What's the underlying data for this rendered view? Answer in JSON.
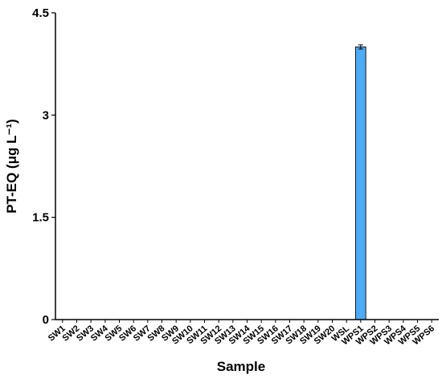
{
  "chart_data": {
    "type": "bar",
    "x_label": "Sample",
    "y_label": "PT-EQ (μg L⁻¹)",
    "categories": [
      "SW1",
      "SW2",
      "SW3",
      "SW4",
      "SW5",
      "SW6",
      "SW7",
      "SW8",
      "SW9",
      "SW10",
      "SW11",
      "SW12",
      "SW13",
      "SW14",
      "SW15",
      "SW16",
      "SW17",
      "SW18",
      "SW19",
      "SW20",
      "WSL",
      "WPS1",
      "WPS2",
      "WPS3",
      "WPS4",
      "WPS5",
      "WPS6"
    ],
    "values": [
      0,
      0,
      0,
      0,
      0,
      0,
      0,
      0,
      0,
      0,
      0,
      0,
      0,
      0,
      0,
      0,
      0,
      0,
      0,
      0,
      0,
      4.0,
      0,
      0,
      0,
      0,
      0
    ],
    "errors": [
      null,
      null,
      null,
      null,
      null,
      null,
      null,
      null,
      null,
      null,
      null,
      null,
      null,
      null,
      null,
      null,
      null,
      null,
      null,
      null,
      null,
      0.03,
      null,
      null,
      null,
      null,
      null
    ],
    "color": "#4daaf5",
    "ylim": [
      0,
      4.5
    ],
    "yticks": [
      0,
      1.5,
      3,
      4.5
    ]
  }
}
